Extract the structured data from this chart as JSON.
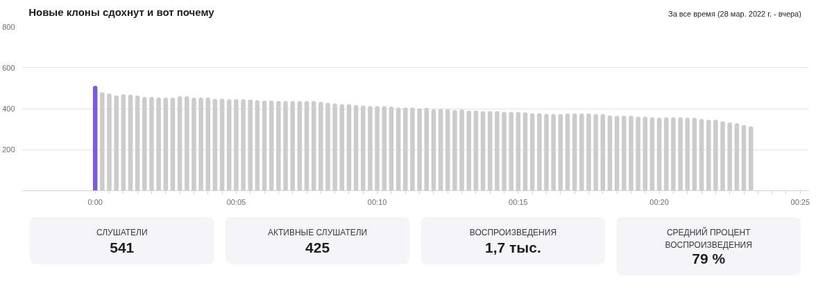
{
  "chart_data": [
    {
      "type": "bar",
      "title": "Новые клоны сдохнут и вот почему",
      "subtitle": "За все время (28 мар. 2022 г. - вчера)",
      "x": [
        0,
        0.25,
        0.5,
        0.75,
        1,
        1.25,
        1.5,
        1.75,
        2,
        2.25,
        2.5,
        2.75,
        3,
        3.25,
        3.5,
        3.75,
        4,
        4.25,
        4.5,
        4.75,
        5,
        5.25,
        5.5,
        5.75,
        6,
        6.25,
        6.5,
        6.75,
        7,
        7.25,
        7.5,
        7.75,
        8,
        8.25,
        8.5,
        8.75,
        9,
        9.25,
        9.5,
        9.75,
        10,
        10.25,
        10.5,
        10.75,
        11,
        11.25,
        11.5,
        11.75,
        12,
        12.25,
        12.5,
        12.75,
        13,
        13.25,
        13.5,
        13.75,
        14,
        14.25,
        14.5,
        14.75,
        15,
        15.25,
        15.5,
        15.75,
        16,
        16.25,
        16.5,
        16.75,
        17,
        17.25,
        17.5,
        17.75,
        18,
        18.25,
        18.5,
        18.75,
        19,
        19.25,
        19.5,
        19.75,
        20,
        20.25,
        20.5,
        20.75,
        21,
        21.25,
        21.5,
        21.75,
        22,
        22.25,
        22.5,
        22.75,
        23,
        23.25
      ],
      "values": [
        511,
        480,
        474,
        465,
        470,
        468,
        464,
        457,
        457,
        454,
        454,
        454,
        461,
        461,
        454,
        454,
        454,
        448,
        449,
        446,
        446,
        446,
        445,
        441,
        440,
        440,
        437,
        437,
        437,
        437,
        437,
        437,
        433,
        429,
        425,
        422,
        422,
        418,
        416,
        413,
        413,
        413,
        410,
        406,
        406,
        406,
        402,
        404,
        397,
        399,
        398,
        393,
        396,
        391,
        391,
        388,
        388,
        388,
        384,
        384,
        384,
        382,
        378,
        378,
        375,
        374,
        374,
        376,
        376,
        376,
        376,
        374,
        374,
        368,
        365,
        365,
        365,
        361,
        361,
        358,
        356,
        358,
        358,
        358,
        356,
        356,
        350,
        346,
        346,
        338,
        333,
        329,
        321,
        314
      ],
      "colors": [
        "#7b5bd9",
        "#cccccc",
        "#cccccc",
        "#cccccc",
        "#cccccc",
        "#cccccc",
        "#cccccc",
        "#cccccc",
        "#cccccc",
        "#cccccc",
        "#cccccc",
        "#cccccc",
        "#cccccc",
        "#cccccc",
        "#cccccc",
        "#cccccc",
        "#cccccc",
        "#cccccc",
        "#cccccc",
        "#cccccc",
        "#cccccc",
        "#cccccc",
        "#cccccc",
        "#cccccc",
        "#cccccc",
        "#cccccc",
        "#cccccc",
        "#cccccc",
        "#cccccc",
        "#cccccc",
        "#cccccc",
        "#cccccc",
        "#cccccc",
        "#cccccc",
        "#cccccc",
        "#cccccc",
        "#cccccc",
        "#cccccc",
        "#cccccc",
        "#cccccc",
        "#cccccc",
        "#cccccc",
        "#cccccc",
        "#cccccc",
        "#cccccc",
        "#cccccc",
        "#cccccc",
        "#cccccc",
        "#cccccc",
        "#cccccc",
        "#cccccc",
        "#cccccc",
        "#cccccc",
        "#cccccc",
        "#cccccc",
        "#cccccc",
        "#cccccc",
        "#cccccc",
        "#cccccc",
        "#cccccc",
        "#cccccc",
        "#cccccc",
        "#cccccc",
        "#cccccc",
        "#cccccc",
        "#cccccc",
        "#cccccc",
        "#cccccc",
        "#cccccc",
        "#cccccc",
        "#cccccc",
        "#cccccc",
        "#cccccc",
        "#cccccc",
        "#cccccc",
        "#cccccc",
        "#cccccc",
        "#cccccc",
        "#cccccc",
        "#cccccc",
        "#cccccc",
        "#cccccc",
        "#cccccc",
        "#cccccc",
        "#cccccc",
        "#cccccc",
        "#cccccc",
        "#cccccc",
        "#cccccc",
        "#cccccc",
        "#cccccc",
        "#cccccc",
        "#cccccc",
        "#cccccc"
      ],
      "xlim": [
        -2.6,
        25.3
      ],
      "ylim": [
        0,
        800
      ],
      "xticks": [
        {
          "value": 0,
          "label": "0:00"
        },
        {
          "value": 0.5,
          "label": null
        },
        {
          "value": 1,
          "label": null
        },
        {
          "value": 1.5,
          "label": null
        },
        {
          "value": 2,
          "label": null
        },
        {
          "value": 2.5,
          "label": null
        },
        {
          "value": 3,
          "label": null
        },
        {
          "value": 3.5,
          "label": null
        },
        {
          "value": 4,
          "label": null
        },
        {
          "value": 4.5,
          "label": null
        },
        {
          "value": 5,
          "label": "00:05"
        },
        {
          "value": 5.5,
          "label": null
        },
        {
          "value": 6,
          "label": null
        },
        {
          "value": 6.5,
          "label": null
        },
        {
          "value": 7,
          "label": null
        },
        {
          "value": 7.5,
          "label": null
        },
        {
          "value": 8,
          "label": null
        },
        {
          "value": 8.5,
          "label": null
        },
        {
          "value": 9,
          "label": null
        },
        {
          "value": 9.5,
          "label": null
        },
        {
          "value": 10,
          "label": "00:10"
        },
        {
          "value": 10.5,
          "label": null
        },
        {
          "value": 11,
          "label": null
        },
        {
          "value": 11.5,
          "label": null
        },
        {
          "value": 12,
          "label": null
        },
        {
          "value": 12.5,
          "label": null
        },
        {
          "value": 13,
          "label": null
        },
        {
          "value": 13.5,
          "label": null
        },
        {
          "value": 14,
          "label": null
        },
        {
          "value": 14.5,
          "label": null
        },
        {
          "value": 15,
          "label": "00:15"
        },
        {
          "value": 15.5,
          "label": null
        },
        {
          "value": 16,
          "label": null
        },
        {
          "value": 16.5,
          "label": null
        },
        {
          "value": 17,
          "label": null
        },
        {
          "value": 17.5,
          "label": null
        },
        {
          "value": 18,
          "label": null
        },
        {
          "value": 18.5,
          "label": null
        },
        {
          "value": 19,
          "label": null
        },
        {
          "value": 19.5,
          "label": null
        },
        {
          "value": 20,
          "label": "00:20"
        },
        {
          "value": 20.5,
          "label": null
        },
        {
          "value": 21,
          "label": null
        },
        {
          "value": 21.5,
          "label": null
        },
        {
          "value": 22,
          "label": null
        },
        {
          "value": 22.5,
          "label": null
        },
        {
          "value": 23,
          "label": null
        },
        {
          "value": 23.5,
          "label": null
        },
        {
          "value": 24,
          "label": null
        },
        {
          "value": 24.5,
          "label": null
        },
        {
          "value": 25,
          "label": "00:25"
        }
      ],
      "yticks": [
        {
          "value": 0,
          "label": null
        },
        200,
        400,
        600,
        800
      ],
      "grid": "y"
    },
    {
      "type": "other",
      "annotations": [
        "СЛУШАТЕЛИ",
        "541",
        "АКТИВНЫЕ СЛУШАТЕЛИ",
        "425",
        "ВОСПРОИЗВЕДЕНИЯ",
        "1,7 тыс.",
        "СРЕДНИЙ ПРОЦЕНТ ВОСПРОИЗВЕДЕНИЯ",
        "79 %"
      ]
    }
  ]
}
